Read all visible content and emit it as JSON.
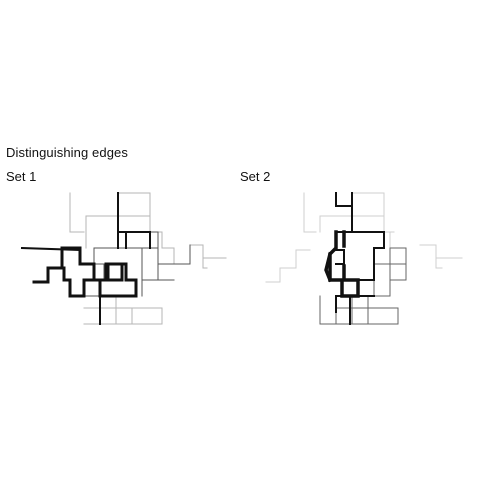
{
  "figure": {
    "title": "Distinguishing edges",
    "sets": [
      {
        "label": "Set 1"
      },
      {
        "label": "Set 2"
      }
    ],
    "stroke_color": "#111111",
    "faint_color": "#bbbbbb",
    "mid_color": "#555555"
  }
}
